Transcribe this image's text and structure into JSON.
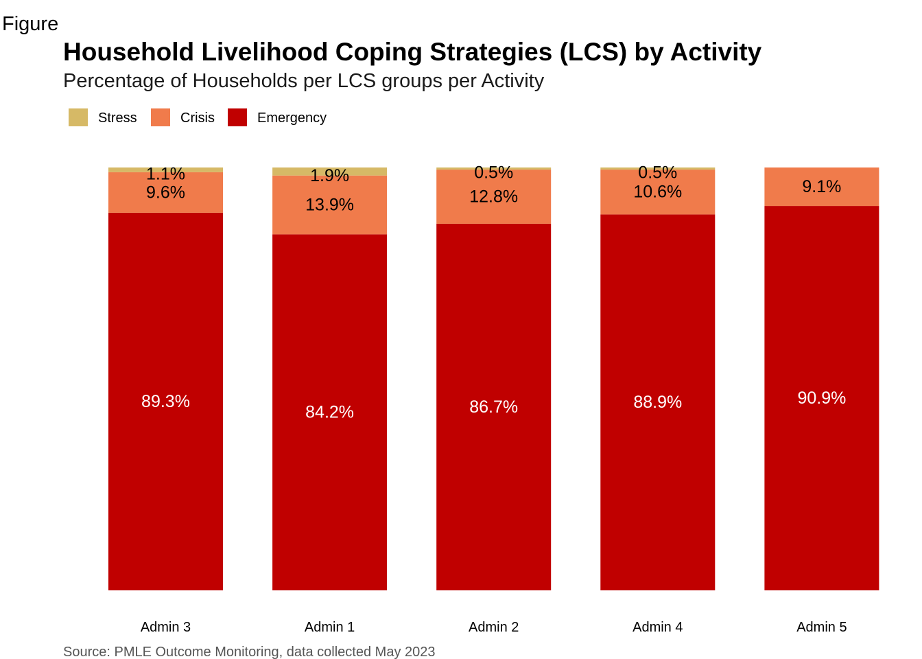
{
  "figure_label": "Figure",
  "caption": "Source: PMLE Outcome Monitoring, data collected May 2023",
  "chart_data": {
    "type": "bar",
    "stacked": true,
    "title": "Household Livelihood Coping Strategies (LCS) by Activity",
    "subtitle": "Percentage of Households per LCS groups per Activity",
    "xlabel": "",
    "ylabel": "",
    "ylim": [
      0,
      100
    ],
    "grid": false,
    "legend_position": "top-left",
    "categories": [
      "Admin 3",
      "Admin 1",
      "Admin 2",
      "Admin 4",
      "Admin 5"
    ],
    "series": [
      {
        "name": "Emergency",
        "color": "#c00000",
        "label_color": "#ffffff",
        "values": [
          89.3,
          84.2,
          86.7,
          88.9,
          90.9
        ],
        "labels": [
          "89.3%",
          "84.2%",
          "86.7%",
          "88.9%",
          "90.9%"
        ]
      },
      {
        "name": "Crisis",
        "color": "#f07b4b",
        "label_color": "#000000",
        "values": [
          9.6,
          13.9,
          12.8,
          10.6,
          9.1
        ],
        "labels": [
          "9.6%",
          "13.9%",
          "12.8%",
          "10.6%",
          "9.1%"
        ]
      },
      {
        "name": "Stress",
        "color": "#d6b966",
        "label_color": "#000000",
        "values": [
          1.1,
          1.9,
          0.5,
          0.5,
          0
        ],
        "labels": [
          "1.1%",
          "1.9%",
          "0.5%",
          "0.5%",
          ""
        ]
      }
    ],
    "legend_order": [
      "Stress",
      "Crisis",
      "Emergency"
    ]
  }
}
